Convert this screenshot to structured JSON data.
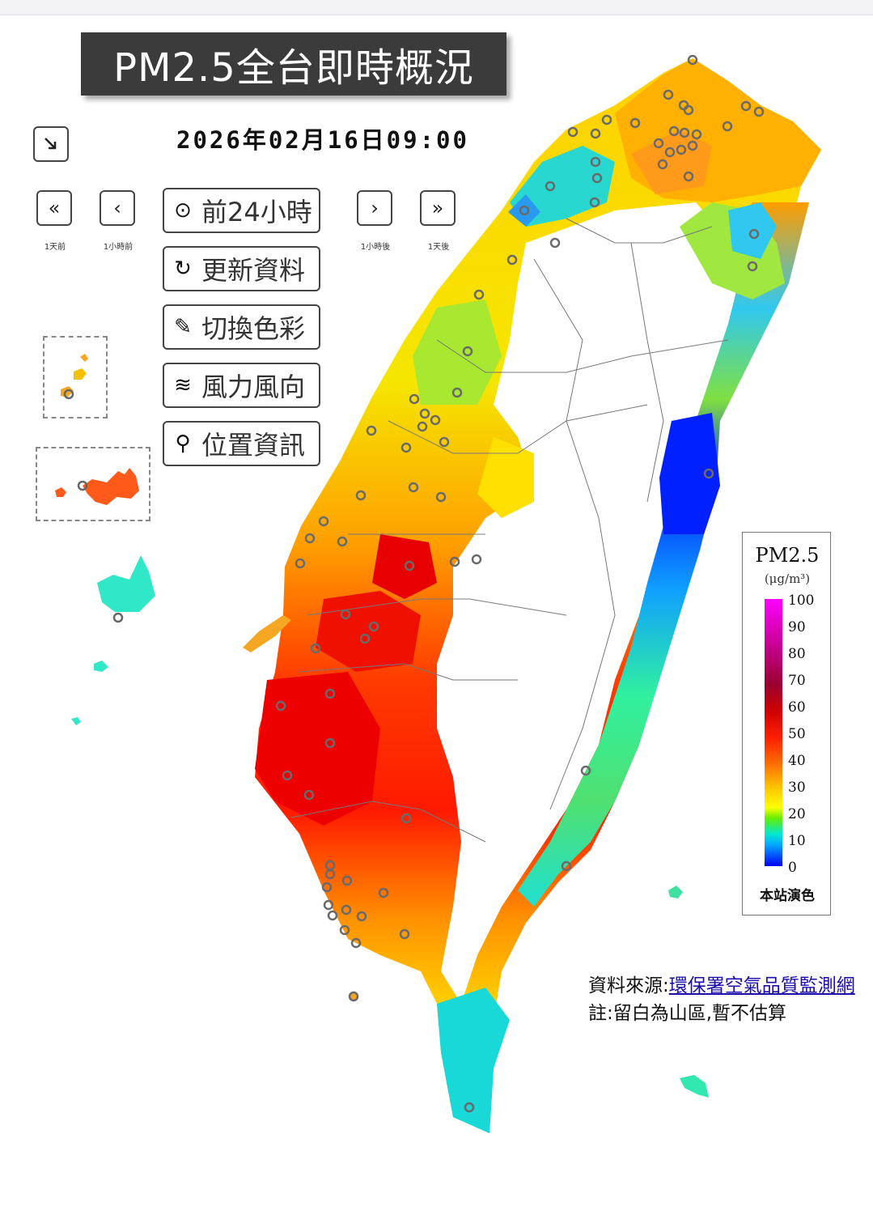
{
  "title": "PM2.5全台即時概況",
  "timestamp": "2026年02月16日09:00",
  "nav": {
    "prev_day_caption": "1天前",
    "prev_hour_caption": "1小時前",
    "next_hour_caption": "1小時後",
    "next_day_caption": "1天後"
  },
  "menu": {
    "past24": "前24小時",
    "refresh": "更新資料",
    "color": "切換色彩",
    "wind": "風力風向",
    "location": "位置資訊"
  },
  "legend": {
    "title": "PM2.5",
    "unit": "(μg/m³)",
    "ticks": [
      "100",
      "90",
      "80",
      "70",
      "60",
      "50",
      "40",
      "30",
      "20",
      "10",
      "0"
    ],
    "note": "本站演色"
  },
  "source": {
    "prefix": "資料來源:",
    "link": "環保署空氣品質監測網"
  },
  "note": "註:留白為山區,暫不估算",
  "colors": {
    "low": "#0000ff",
    "mid": "#ffff00",
    "high": "#ff0000",
    "max": "#ff00ff"
  }
}
